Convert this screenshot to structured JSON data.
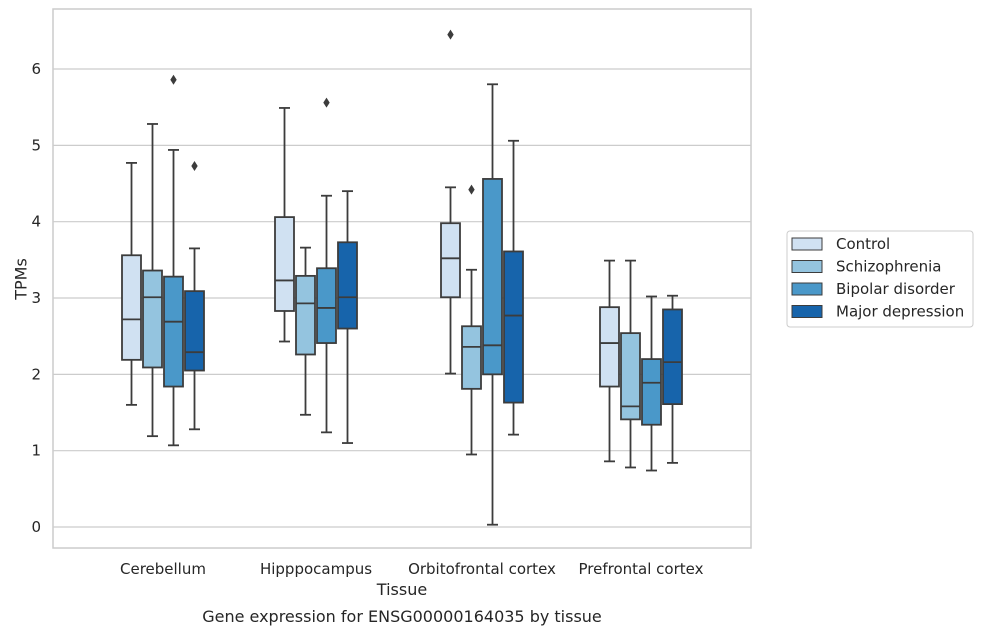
{
  "chart_data": {
    "type": "box",
    "caption": "Gene expression for ENSG00000164035 by tissue",
    "xlabel": "Tissue",
    "ylabel": "TPMs",
    "ylim": [
      -0.3,
      6.8
    ],
    "yticks": [
      0,
      1,
      2,
      3,
      4,
      5,
      6
    ],
    "grid": "horizontal",
    "legend_position": "right",
    "categories": [
      "Cerebellum",
      "Hipppocampus",
      "Orbitofrontal cortex",
      "Prefrontal cortex"
    ],
    "series": [
      {
        "name": "Control",
        "color": "#d0e1f2",
        "boxes": [
          {
            "whislo": 1.6,
            "q1": 2.19,
            "med": 2.72,
            "q3": 3.56,
            "whishi": 4.77,
            "fliers": []
          },
          {
            "whislo": 2.43,
            "q1": 2.83,
            "med": 3.23,
            "q3": 4.06,
            "whishi": 5.49,
            "fliers": []
          },
          {
            "whislo": 2.01,
            "q1": 3.01,
            "med": 3.52,
            "q3": 3.98,
            "whishi": 4.45,
            "fliers": [
              6.45
            ]
          },
          {
            "whislo": 0.86,
            "q1": 1.84,
            "med": 2.41,
            "q3": 2.88,
            "whishi": 3.49,
            "fliers": []
          }
        ]
      },
      {
        "name": "Schizophrenia",
        "color": "#94c4df",
        "boxes": [
          {
            "whislo": 1.19,
            "q1": 2.09,
            "med": 3.01,
            "q3": 3.36,
            "whishi": 5.28,
            "fliers": []
          },
          {
            "whislo": 1.47,
            "q1": 2.26,
            "med": 2.93,
            "q3": 3.29,
            "whishi": 3.66,
            "fliers": []
          },
          {
            "whislo": 0.95,
            "q1": 1.81,
            "med": 2.36,
            "q3": 2.63,
            "whishi": 3.37,
            "fliers": [
              4.42
            ]
          },
          {
            "whislo": 0.78,
            "q1": 1.41,
            "med": 1.58,
            "q3": 2.54,
            "whishi": 3.49,
            "fliers": []
          }
        ]
      },
      {
        "name": "Bipolar disorder",
        "color": "#4a98c9",
        "boxes": [
          {
            "whislo": 1.07,
            "q1": 1.84,
            "med": 2.69,
            "q3": 3.28,
            "whishi": 4.94,
            "fliers": [
              5.86
            ]
          },
          {
            "whislo": 1.24,
            "q1": 2.41,
            "med": 2.87,
            "q3": 3.39,
            "whishi": 4.34,
            "fliers": [
              5.56
            ]
          },
          {
            "whislo": 0.03,
            "q1": 2.0,
            "med": 2.38,
            "q3": 4.56,
            "whishi": 5.8,
            "fliers": []
          },
          {
            "whislo": 0.74,
            "q1": 1.34,
            "med": 1.89,
            "q3": 2.2,
            "whishi": 3.02,
            "fliers": []
          }
        ]
      },
      {
        "name": "Major depression",
        "color": "#1764ab",
        "boxes": [
          {
            "whislo": 1.28,
            "q1": 2.05,
            "med": 2.29,
            "q3": 3.09,
            "whishi": 3.65,
            "fliers": [
              4.73
            ]
          },
          {
            "whislo": 1.1,
            "q1": 2.6,
            "med": 3.01,
            "q3": 3.73,
            "whishi": 4.4,
            "fliers": []
          },
          {
            "whislo": 1.21,
            "q1": 1.63,
            "med": 2.77,
            "q3": 3.61,
            "whishi": 5.06,
            "fliers": []
          },
          {
            "whislo": 0.84,
            "q1": 1.61,
            "med": 2.16,
            "q3": 2.85,
            "whishi": 3.03,
            "fliers": []
          }
        ]
      }
    ]
  }
}
